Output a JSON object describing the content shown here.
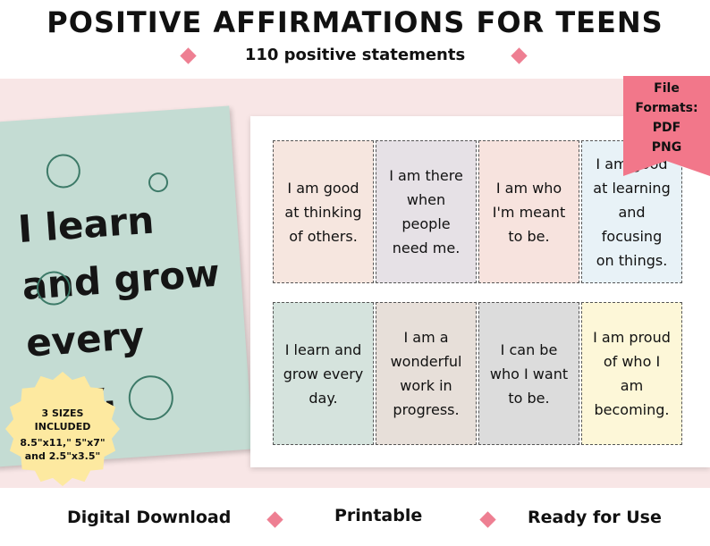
{
  "header": {
    "title": "POSITIVE AFFIRMATIONS FOR TEENS",
    "subtitle": "110 positive statements"
  },
  "poster": {
    "text": "I learn and grow every day."
  },
  "badge": {
    "title": "3 SIZES INCLUDED",
    "sizes": "8.5\"x11,\" 5\"x7\" and 2.5\"x3.5\""
  },
  "formats": {
    "label": "File Formats:",
    "items": [
      "PDF",
      "PNG"
    ]
  },
  "cards": [
    "I am good at thinking of others.",
    "I am there when people need me.",
    "I am who I'm meant to be.",
    "I am good at learning and focusing on things.",
    "I learn and grow every day.",
    "I am a wonderful work in progress.",
    "I can be who I want to be.",
    "I am proud of who I am becoming."
  ],
  "footer": [
    "Digital Download",
    "Printable",
    "Ready for Use"
  ]
}
